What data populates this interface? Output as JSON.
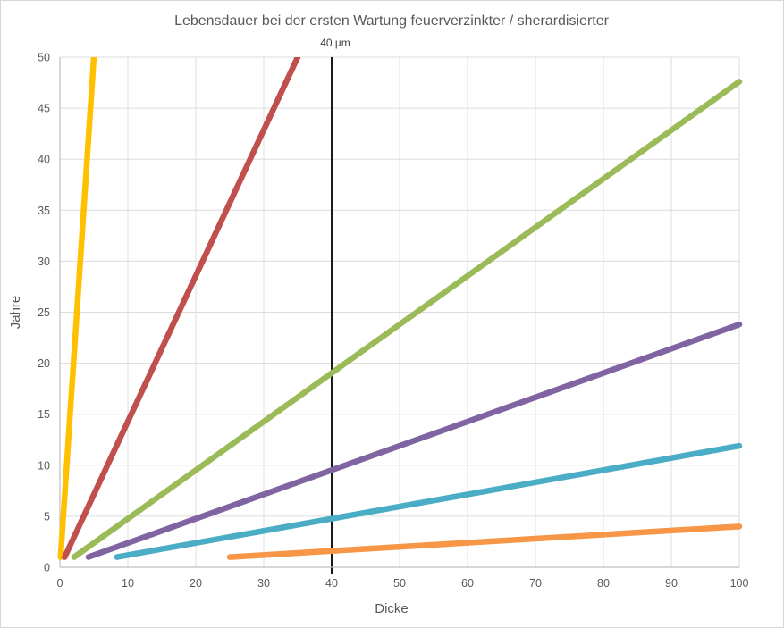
{
  "chart_data": {
    "type": "line",
    "title": "Lebensdauer bei der ersten Wartung feuerverzinkter / sherardisierter",
    "xlabel": "Dicke",
    "ylabel": "Jahre",
    "xlim": [
      0,
      100
    ],
    "ylim": [
      0,
      50
    ],
    "x_ticks": [
      0,
      10,
      20,
      30,
      40,
      50,
      60,
      70,
      80,
      90,
      100
    ],
    "y_ticks": [
      0,
      5,
      10,
      15,
      20,
      25,
      30,
      35,
      40,
      45,
      50
    ],
    "grid": true,
    "legend": "none",
    "annotation": {
      "label": "40 µm",
      "x": 40,
      "shape": "vertical-line",
      "color": "#000000"
    },
    "series": [
      {
        "name": "yellow-line",
        "color": "#FFC000",
        "points": [
          [
            0.1,
            1
          ],
          [
            5,
            50
          ]
        ]
      },
      {
        "name": "red-line",
        "color": "#C0504D",
        "points": [
          [
            0.7,
            1
          ],
          [
            35,
            50
          ]
        ]
      },
      {
        "name": "green-line",
        "color": "#9BBB59",
        "points": [
          [
            2.1,
            1
          ],
          [
            100,
            47.6
          ]
        ]
      },
      {
        "name": "purple-line",
        "color": "#8064A2",
        "points": [
          [
            4.2,
            1
          ],
          [
            100,
            23.8
          ]
        ]
      },
      {
        "name": "cyan-line",
        "color": "#4BACC6",
        "points": [
          [
            8.4,
            1
          ],
          [
            100,
            11.9
          ]
        ]
      },
      {
        "name": "orange-line",
        "color": "#F79646",
        "points": [
          [
            25,
            1
          ],
          [
            100,
            4
          ]
        ]
      }
    ],
    "style": {
      "gridline_color": "#DCDCDC",
      "axis_color": "#BFBFBF",
      "text_color": "#595959",
      "background": "#FFFFFF",
      "series_stroke_width": 6.5
    }
  }
}
